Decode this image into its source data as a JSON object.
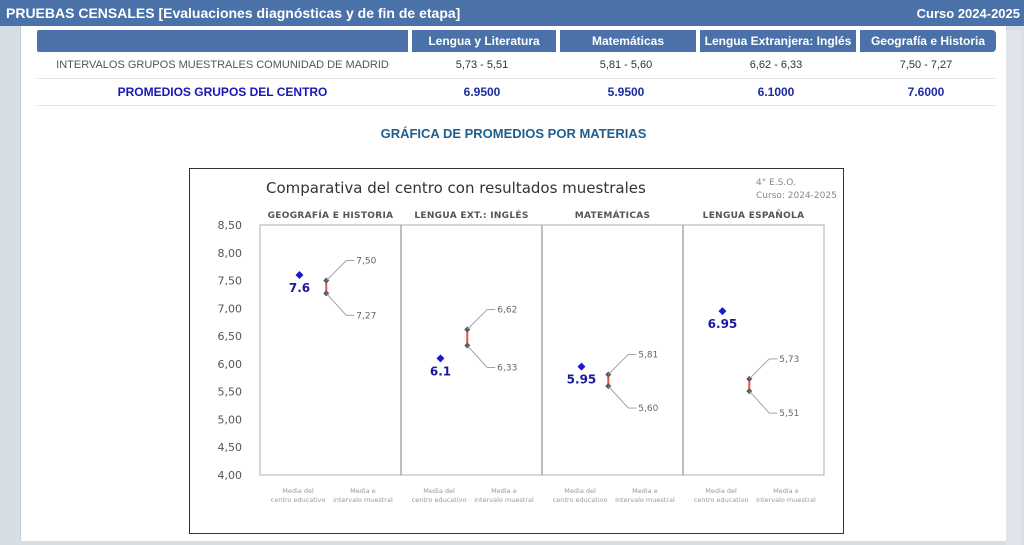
{
  "header": {
    "title": "PRUEBAS CENSALES [Evaluaciones diagnósticas y de fin de etapa]",
    "course": "Curso 2024-2025"
  },
  "table": {
    "columns": [
      "Lengua y Literatura",
      "Matemáticas",
      "Lengua Extranjera: Inglés",
      "Geografía e Historia"
    ],
    "rows": [
      {
        "label": "INTERVALOS GRUPOS MUESTRALES COMUNIDAD DE MADRID",
        "values": [
          "5,73 - 5,51",
          "5,81 - 5,60",
          "6,62 - 6,33",
          "7,50 - 7,27"
        ]
      },
      {
        "label": "PROMEDIOS GRUPOS DEL CENTRO",
        "values": [
          "6.9500",
          "5.9500",
          "6.1000",
          "7.6000"
        ]
      }
    ]
  },
  "section_heading": "GRÁFICA DE PROMEDIOS POR MATERIAS",
  "chart_data": {
    "type": "scatter",
    "title": "Comparativa del centro con resultados muestrales",
    "corner_text": [
      "4° E.S.O.",
      "Curso: 2024-2025"
    ],
    "ylim": [
      4.0,
      8.5
    ],
    "yticks": [
      "4,00",
      "4,50",
      "5,00",
      "5,50",
      "6,00",
      "6,50",
      "7,00",
      "7,50",
      "8,00",
      "8,50"
    ],
    "grid": false,
    "panel_x_labels": [
      "Media del centro educativo",
      "Media e intervalo muestral"
    ],
    "panels": [
      {
        "name": "GEOGRAFÍA E HISTORIA",
        "center_value": 7.6,
        "center_label": "7.6",
        "interval_high": 7.5,
        "interval_low": 7.27,
        "high_label": "7,50",
        "low_label": "7,27"
      },
      {
        "name": "LENGUA EXT.: INGLÉS",
        "center_value": 6.1,
        "center_label": "6.1",
        "interval_high": 6.62,
        "interval_low": 6.33,
        "high_label": "6,62",
        "low_label": "6,33"
      },
      {
        "name": "MATEMÁTICAS",
        "center_value": 5.95,
        "center_label": "5.95",
        "interval_high": 5.81,
        "interval_low": 5.6,
        "high_label": "5,81",
        "low_label": "5,60"
      },
      {
        "name": "LENGUA ESPAÑOLA",
        "center_value": 6.95,
        "center_label": "6.95",
        "interval_high": 5.73,
        "interval_low": 5.51,
        "high_label": "5,73",
        "low_label": "5,51"
      }
    ],
    "colors": {
      "center": "#1a1acc",
      "interval_line": "#e0554a",
      "interval_point": "#555555",
      "leader": "#9a9a9a"
    }
  }
}
